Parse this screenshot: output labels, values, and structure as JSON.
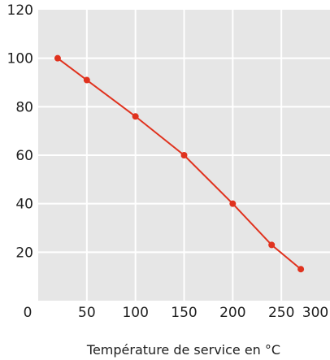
{
  "chart_data": {
    "type": "line",
    "xlabel": "Température de service en °C",
    "ylabel": "",
    "xlim": [
      0,
      300
    ],
    "ylim": [
      0,
      120
    ],
    "x_ticks": [
      "0",
      "50",
      "100",
      "150",
      "200",
      "250",
      "300"
    ],
    "y_ticks": [
      "20",
      "40",
      "60",
      "80",
      "100",
      "120"
    ],
    "grid": true,
    "colors": {
      "background": "#e6e6e6",
      "grid": "#ffffff",
      "series": "#e0321e"
    },
    "series": [
      {
        "x": [
          20,
          50,
          100,
          150,
          200,
          240,
          270
        ],
        "y": [
          100,
          91,
          76,
          60,
          40,
          23,
          13
        ]
      }
    ]
  }
}
